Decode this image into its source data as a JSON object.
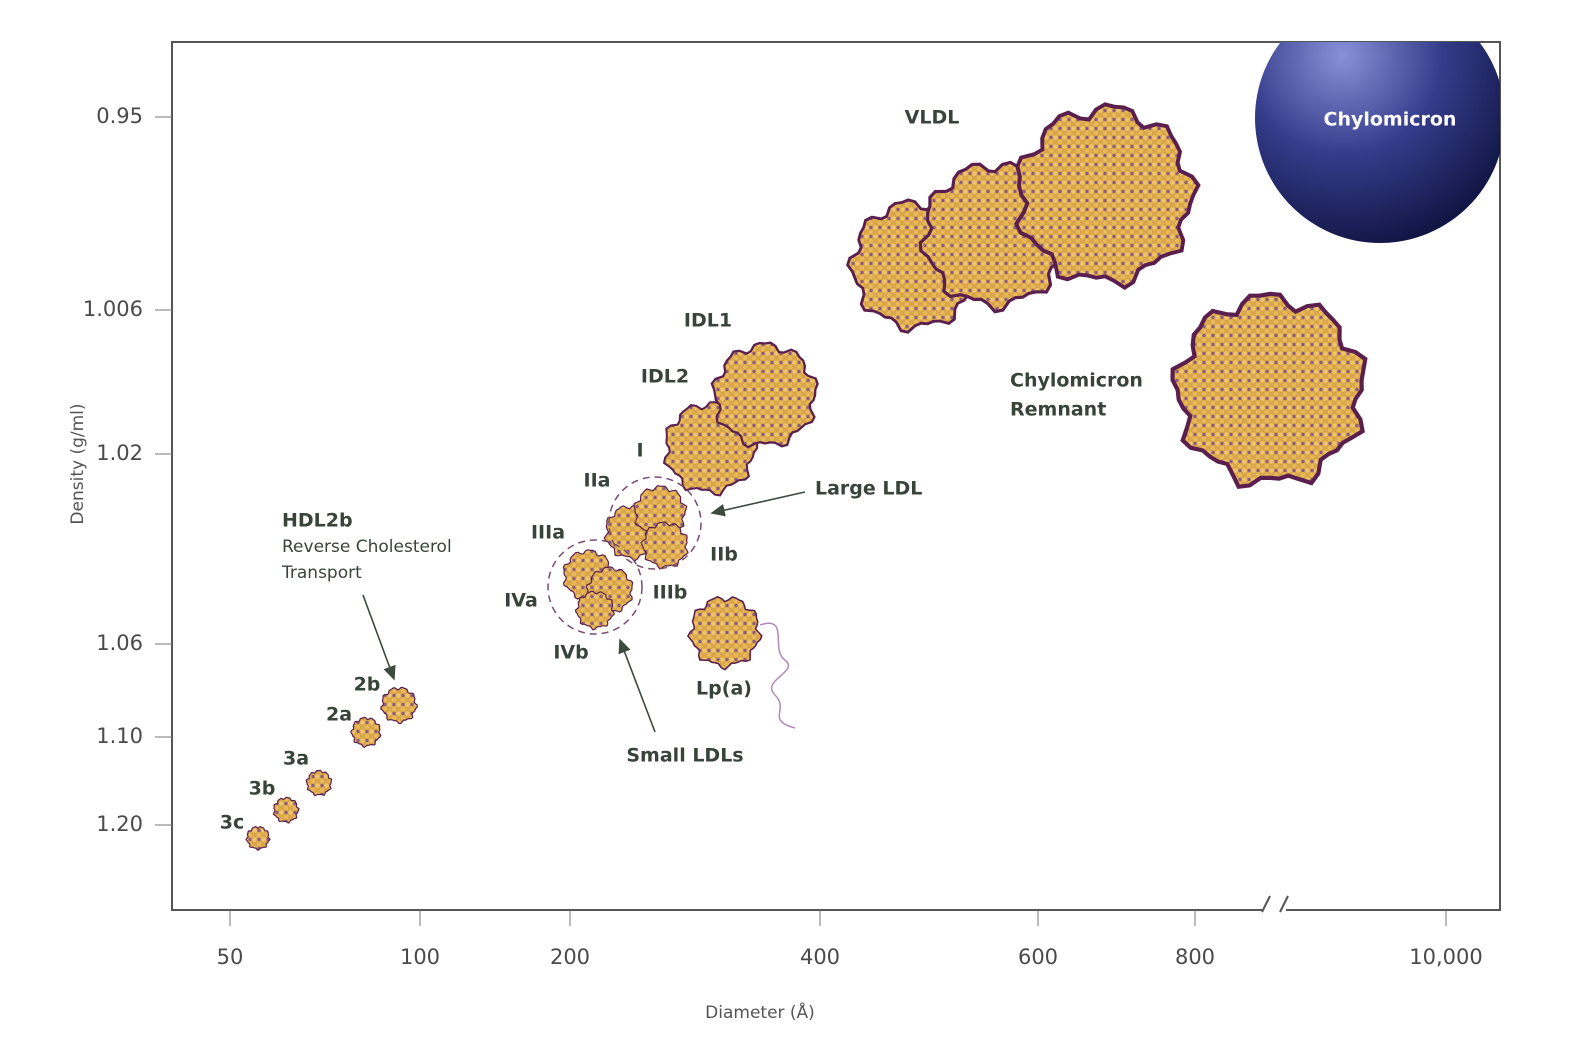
{
  "y_axis": {
    "label": "Density (g/ml)",
    "ticks": [
      "0.95",
      "1.006",
      "1.02",
      "1.06",
      "1.10",
      "1.20"
    ]
  },
  "x_axis": {
    "label": "Diameter (Å)",
    "ticks": [
      "50",
      "100",
      "200",
      "400",
      "600",
      "800",
      "10,000"
    ]
  },
  "particle_labels": [
    "3c",
    "3b",
    "3a",
    "2a",
    "2b",
    "IIIa",
    "IVa",
    "IVb",
    "IIIb",
    "IIa",
    "I",
    "IIb",
    "Lp(a)",
    "IDL2",
    "IDL1",
    "VLDL"
  ],
  "hdl2b": {
    "title": "HDL2b",
    "description": [
      "Reverse Cholesterol",
      "Transport"
    ]
  },
  "groups": {
    "large_ldl": "Large LDL",
    "small_ldls": "Small LDLs"
  },
  "chylomicron": "Chylomicron",
  "chylomicron_remnant": [
    "Chylomicron",
    "Remnant"
  ]
}
